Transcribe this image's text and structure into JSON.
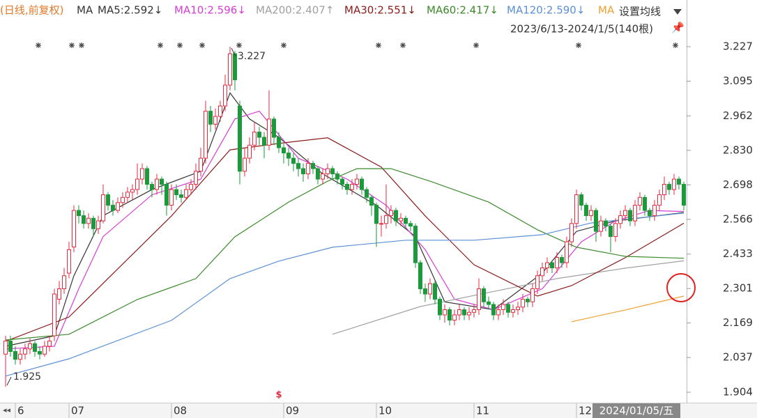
{
  "chart_data": {
    "type": "candlestick",
    "title": "(日线,前复权)",
    "ma_label": "MA",
    "settings_label": "设置均线",
    "range_label": "2023/6/13-2024/1/5(140根)",
    "cursor_date": "2024/01/05/五",
    "up_color": "#e8283c",
    "down_color": "#1a9a3a",
    "xlim": [
      -0.5,
      139.5
    ],
    "xticks": [
      {
        "value": 2,
        "label": "6"
      },
      {
        "value": 13,
        "label": "07"
      },
      {
        "value": 34,
        "label": "08"
      },
      {
        "value": 57,
        "label": "09"
      },
      {
        "value": 76,
        "label": "10"
      },
      {
        "value": 96,
        "label": "11"
      },
      {
        "value": 117,
        "label": "12"
      }
    ],
    "ylim": [
      1.904,
      3.227
    ],
    "yticks": [
      3.227,
      3.095,
      2.962,
      {
        "value": 2.83,
        "label": "2.830"
      },
      2.698,
      2.566,
      2.433,
      2.301,
      2.169,
      2.037,
      1.904
    ],
    "ohlc": [
      [
        2.05,
        2.12,
        1.925,
        2.1
      ],
      [
        2.1,
        2.12,
        2.04,
        2.06
      ],
      [
        2.06,
        2.08,
        2.01,
        2.03
      ],
      [
        2.03,
        2.07,
        2.01,
        2.05
      ],
      [
        2.05,
        2.09,
        2.03,
        2.07
      ],
      [
        2.07,
        2.11,
        2.05,
        2.09
      ],
      [
        2.09,
        2.1,
        2.04,
        2.06
      ],
      [
        2.06,
        2.08,
        2.03,
        2.05
      ],
      [
        2.05,
        2.1,
        2.04,
        2.08
      ],
      [
        2.08,
        2.12,
        2.06,
        2.1
      ],
      [
        2.12,
        2.3,
        2.1,
        2.28
      ],
      [
        2.26,
        2.33,
        2.24,
        2.3
      ],
      [
        2.3,
        2.38,
        2.28,
        2.35
      ],
      [
        2.36,
        2.48,
        2.34,
        2.45
      ],
      [
        2.46,
        2.62,
        2.44,
        2.6
      ],
      [
        2.6,
        2.62,
        2.55,
        2.58
      ],
      [
        2.58,
        2.6,
        2.53,
        2.55
      ],
      [
        2.55,
        2.59,
        2.53,
        2.57
      ],
      [
        2.57,
        2.58,
        2.5,
        2.53
      ],
      [
        2.53,
        2.58,
        2.51,
        2.56
      ],
      [
        2.56,
        2.7,
        2.55,
        2.66
      ],
      [
        2.66,
        2.67,
        2.6,
        2.62
      ],
      [
        2.62,
        2.64,
        2.58,
        2.6
      ],
      [
        2.6,
        2.65,
        2.59,
        2.63
      ],
      [
        2.63,
        2.67,
        2.61,
        2.65
      ],
      [
        2.65,
        2.69,
        2.63,
        2.67
      ],
      [
        2.67,
        2.7,
        2.64,
        2.68
      ],
      [
        2.68,
        2.78,
        2.66,
        2.72
      ],
      [
        2.72,
        2.78,
        2.7,
        2.76
      ],
      [
        2.76,
        2.77,
        2.68,
        2.7
      ],
      [
        2.7,
        2.71,
        2.65,
        2.68
      ],
      [
        2.68,
        2.74,
        2.66,
        2.72
      ],
      [
        2.72,
        2.73,
        2.66,
        2.7
      ],
      [
        2.7,
        2.71,
        2.58,
        2.62
      ],
      [
        2.62,
        2.7,
        2.6,
        2.68
      ],
      [
        2.68,
        2.7,
        2.64,
        2.66
      ],
      [
        2.66,
        2.68,
        2.63,
        2.65
      ],
      [
        2.65,
        2.7,
        2.64,
        2.68
      ],
      [
        2.68,
        2.72,
        2.66,
        2.7
      ],
      [
        2.7,
        2.78,
        2.68,
        2.75
      ],
      [
        2.75,
        2.84,
        2.73,
        2.8
      ],
      [
        2.8,
        3.02,
        2.78,
        2.98
      ],
      [
        2.98,
        3.0,
        2.9,
        2.93
      ],
      [
        2.93,
        2.99,
        2.91,
        2.96
      ],
      [
        2.96,
        3.02,
        2.94,
        3.0
      ],
      [
        3.0,
        3.12,
        2.98,
        3.08
      ],
      [
        3.08,
        3.227,
        3.06,
        3.2
      ],
      [
        3.2,
        3.21,
        3.06,
        3.1
      ],
      [
        3.0,
        3.02,
        2.7,
        2.75
      ],
      [
        2.75,
        2.84,
        2.73,
        2.8
      ],
      [
        2.8,
        2.88,
        2.78,
        2.85
      ],
      [
        2.85,
        2.94,
        2.83,
        2.9
      ],
      [
        2.9,
        2.92,
        2.85,
        2.88
      ],
      [
        2.88,
        2.9,
        2.8,
        2.85
      ],
      [
        2.85,
        3.06,
        2.83,
        2.95
      ],
      [
        2.95,
        2.96,
        2.85,
        2.88
      ],
      [
        2.88,
        2.9,
        2.82,
        2.84
      ],
      [
        2.84,
        2.86,
        2.78,
        2.82
      ],
      [
        2.82,
        2.84,
        2.77,
        2.8
      ],
      [
        2.8,
        2.82,
        2.75,
        2.78
      ],
      [
        2.78,
        2.8,
        2.73,
        2.76
      ],
      [
        2.76,
        2.78,
        2.71,
        2.74
      ],
      [
        2.74,
        2.8,
        2.72,
        2.78
      ],
      [
        2.78,
        2.79,
        2.74,
        2.76
      ],
      [
        2.76,
        2.77,
        2.7,
        2.72
      ],
      [
        2.72,
        2.76,
        2.7,
        2.74
      ],
      [
        2.74,
        2.78,
        2.72,
        2.76
      ],
      [
        2.76,
        2.77,
        2.72,
        2.74
      ],
      [
        2.74,
        2.75,
        2.7,
        2.72
      ],
      [
        2.72,
        2.73,
        2.68,
        2.7
      ],
      [
        2.7,
        2.71,
        2.66,
        2.68
      ],
      [
        2.68,
        2.72,
        2.66,
        2.7
      ],
      [
        2.7,
        2.74,
        2.68,
        2.72
      ],
      [
        2.72,
        2.73,
        2.66,
        2.68
      ],
      [
        2.68,
        2.69,
        2.63,
        2.65
      ],
      [
        2.65,
        2.66,
        2.58,
        2.62
      ],
      [
        2.62,
        2.63,
        2.46,
        2.55
      ],
      [
        2.55,
        2.58,
        2.5,
        2.55
      ],
      [
        2.55,
        2.7,
        2.53,
        2.58
      ],
      [
        2.58,
        2.62,
        2.55,
        2.6
      ],
      [
        2.6,
        2.61,
        2.54,
        2.56
      ],
      [
        2.56,
        2.59,
        2.54,
        2.57
      ],
      [
        2.57,
        2.58,
        2.53,
        2.55
      ],
      [
        2.55,
        2.56,
        2.52,
        2.54
      ],
      [
        2.54,
        2.55,
        2.38,
        2.4
      ],
      [
        2.4,
        2.41,
        2.28,
        2.3
      ],
      [
        2.3,
        2.32,
        2.25,
        2.28
      ],
      [
        2.28,
        2.34,
        2.26,
        2.32
      ],
      [
        2.32,
        2.33,
        2.24,
        2.26
      ],
      [
        2.26,
        2.27,
        2.18,
        2.2
      ],
      [
        2.2,
        2.24,
        2.17,
        2.22
      ],
      [
        2.22,
        2.23,
        2.16,
        2.18
      ],
      [
        2.18,
        2.22,
        2.16,
        2.2
      ],
      [
        2.2,
        2.24,
        2.18,
        2.22
      ],
      [
        2.22,
        2.23,
        2.18,
        2.2
      ],
      [
        2.2,
        2.23,
        2.18,
        2.21
      ],
      [
        2.21,
        2.24,
        2.19,
        2.22
      ],
      [
        2.22,
        2.34,
        2.2,
        2.3
      ],
      [
        2.3,
        2.31,
        2.23,
        2.25
      ],
      [
        2.25,
        2.27,
        2.22,
        2.24
      ],
      [
        2.24,
        2.25,
        2.18,
        2.2
      ],
      [
        2.2,
        2.24,
        2.18,
        2.22
      ],
      [
        2.22,
        2.26,
        2.2,
        2.24
      ],
      [
        2.24,
        2.25,
        2.19,
        2.21
      ],
      [
        2.21,
        2.24,
        2.19,
        2.22
      ],
      [
        2.22,
        2.25,
        2.2,
        2.23
      ],
      [
        2.23,
        2.28,
        2.21,
        2.26
      ],
      [
        2.26,
        2.27,
        2.23,
        2.25
      ],
      [
        2.25,
        2.32,
        2.23,
        2.3
      ],
      [
        2.3,
        2.37,
        2.28,
        2.35
      ],
      [
        2.35,
        2.4,
        2.33,
        2.38
      ],
      [
        2.38,
        2.42,
        2.36,
        2.4
      ],
      [
        2.4,
        2.41,
        2.36,
        2.38
      ],
      [
        2.38,
        2.44,
        2.36,
        2.42
      ],
      [
        2.42,
        2.43,
        2.38,
        2.4
      ],
      [
        2.4,
        2.5,
        2.38,
        2.48
      ],
      [
        2.48,
        2.57,
        2.46,
        2.55
      ],
      [
        2.55,
        2.68,
        2.53,
        2.66
      ],
      [
        2.66,
        2.67,
        2.6,
        2.62
      ],
      [
        2.62,
        2.63,
        2.56,
        2.58
      ],
      [
        2.58,
        2.62,
        2.56,
        2.6
      ],
      [
        2.6,
        2.61,
        2.48,
        2.52
      ],
      [
        2.52,
        2.58,
        2.5,
        2.56
      ],
      [
        2.56,
        2.57,
        2.52,
        2.54
      ],
      [
        2.54,
        2.55,
        2.44,
        2.5
      ],
      [
        2.5,
        2.57,
        2.48,
        2.55
      ],
      [
        2.55,
        2.6,
        2.53,
        2.58
      ],
      [
        2.58,
        2.62,
        2.56,
        2.6
      ],
      [
        2.6,
        2.61,
        2.54,
        2.56
      ],
      [
        2.56,
        2.64,
        2.54,
        2.62
      ],
      [
        2.62,
        2.67,
        2.6,
        2.65
      ],
      [
        2.65,
        2.66,
        2.58,
        2.6
      ],
      [
        2.6,
        2.61,
        2.56,
        2.58
      ],
      [
        2.58,
        2.64,
        2.56,
        2.62
      ],
      [
        2.62,
        2.68,
        2.6,
        2.66
      ],
      [
        2.66,
        2.73,
        2.64,
        2.7
      ],
      [
        2.7,
        2.71,
        2.66,
        2.68
      ],
      [
        2.68,
        2.74,
        2.66,
        2.72
      ],
      [
        2.72,
        2.73,
        2.68,
        2.7
      ],
      [
        2.7,
        2.71,
        2.6,
        2.62
      ]
    ],
    "ma_series": [
      {
        "name": "MA5",
        "legend_label": "MA5:2.592↓",
        "color": "#333333",
        "x": [
          0,
          10,
          14,
          20,
          30,
          40,
          46,
          50,
          56,
          65,
          76,
          84,
          90,
          100,
          110,
          117,
          125,
          139
        ],
        "values": [
          2.08,
          2.12,
          2.35,
          2.58,
          2.68,
          2.75,
          3.05,
          2.95,
          2.88,
          2.74,
          2.62,
          2.5,
          2.25,
          2.22,
          2.36,
          2.52,
          2.56,
          2.592
        ]
      },
      {
        "name": "MA10",
        "legend_label": "MA10:2.596↓",
        "color": "#d63dd6",
        "x": [
          0,
          10,
          15,
          20,
          30,
          40,
          47,
          52,
          60,
          70,
          78,
          86,
          92,
          100,
          110,
          118,
          125,
          132,
          139
        ],
        "values": [
          2.07,
          2.08,
          2.3,
          2.5,
          2.66,
          2.72,
          2.95,
          2.98,
          2.8,
          2.72,
          2.62,
          2.45,
          2.26,
          2.22,
          2.3,
          2.48,
          2.56,
          2.6,
          2.596
        ]
      },
      {
        "name": "MA200",
        "legend_label": "MA200:2.407↑",
        "color": "#a0a0a0",
        "x": [
          67,
          85,
          99,
          113,
          127,
          139
        ],
        "values": [
          2.126,
          2.232,
          2.286,
          2.339,
          2.379,
          2.407
        ]
      },
      {
        "name": "MA30",
        "legend_label": "MA30:2.551↓",
        "color": "#8b1a1a",
        "x": [
          0,
          13,
          34,
          46,
          57,
          66,
          77,
          86,
          96,
          109,
          116,
          127,
          139
        ],
        "values": [
          2.099,
          2.192,
          2.579,
          2.832,
          2.859,
          2.878,
          2.766,
          2.579,
          2.392,
          2.272,
          2.312,
          2.419,
          2.551
        ]
      },
      {
        "name": "MA60",
        "legend_label": "MA60:2.417↓",
        "color": "#3a8a2a",
        "x": [
          0,
          13,
          27,
          39,
          47,
          58,
          66,
          72,
          79,
          87,
          99,
          109,
          117,
          127,
          139
        ],
        "values": [
          2.104,
          2.126,
          2.259,
          2.339,
          2.499,
          2.632,
          2.712,
          2.76,
          2.76,
          2.712,
          2.632,
          2.526,
          2.459,
          2.424,
          2.417
        ]
      },
      {
        "name": "MA120",
        "legend_label": "MA120:2.590↓",
        "color": "#5b8fd6",
        "x": [
          0,
          13,
          34,
          46,
          56,
          67,
          82,
          96,
          110,
          120,
          139
        ],
        "values": [
          1.966,
          2.032,
          2.179,
          2.339,
          2.406,
          2.459,
          2.486,
          2.486,
          2.507,
          2.552,
          2.59
        ]
      },
      {
        "name": "MA",
        "legend_label": "MA",
        "color": "#f0a030",
        "x": [
          116,
          127,
          139
        ],
        "values": [
          2.174,
          2.219,
          2.272
        ]
      }
    ],
    "annotations": [
      {
        "value": 3.227,
        "x": 46
      },
      {
        "value": 1.925,
        "x": 0
      }
    ]
  }
}
